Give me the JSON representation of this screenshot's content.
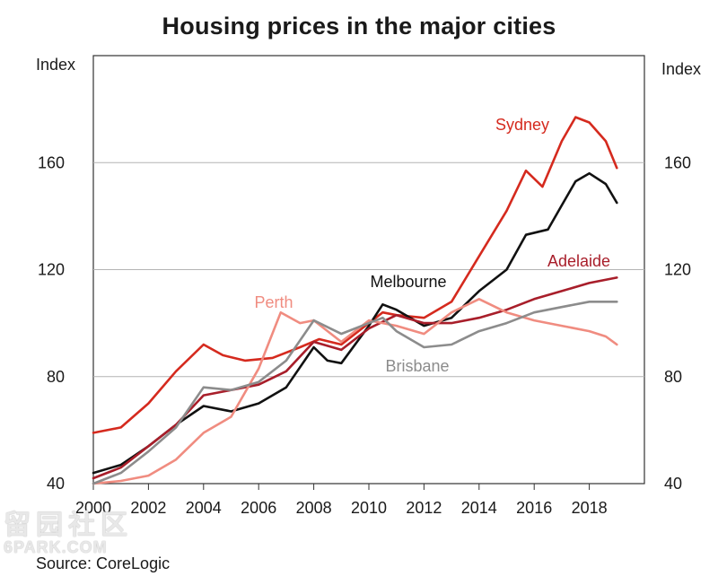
{
  "title": "Housing prices in the major cities",
  "y_unit_left": "Index",
  "y_unit_right": "Index",
  "source": "Source: CoreLogic",
  "watermark": {
    "chars": "留园社区",
    "site": "6PARK.COM"
  },
  "colors": {
    "Sydney": "#d52a1e",
    "Melbourne": "#111111",
    "Adelaide": "#a81e2a",
    "Perth": "#f08c80",
    "Brisbane": "#8c8c8c",
    "grid": "#b4b4b4",
    "axis": "#333333"
  },
  "chart_data": {
    "type": "line",
    "title": "Housing prices in the major cities",
    "ylabel": "Index",
    "xlim": [
      2000,
      2020
    ],
    "ylim": [
      40,
      200
    ],
    "y_ticks": [
      40,
      80,
      120,
      160
    ],
    "x_ticks": [
      2000,
      2002,
      2004,
      2006,
      2008,
      2010,
      2012,
      2014,
      2016,
      2018
    ],
    "grid": "horizontal",
    "series": [
      {
        "name": "Sydney",
        "points": [
          [
            2000,
            59
          ],
          [
            2001,
            61
          ],
          [
            2002,
            70
          ],
          [
            2003,
            82
          ],
          [
            2004,
            92
          ],
          [
            2004.7,
            88
          ],
          [
            2005.5,
            86
          ],
          [
            2006.5,
            87
          ],
          [
            2007.5,
            91
          ],
          [
            2008.2,
            94
          ],
          [
            2009,
            92
          ],
          [
            2010,
            100
          ],
          [
            2010.5,
            104
          ],
          [
            2011,
            103
          ],
          [
            2012,
            102
          ],
          [
            2013,
            108
          ],
          [
            2014,
            125
          ],
          [
            2015,
            142
          ],
          [
            2015.7,
            157
          ],
          [
            2016.3,
            151
          ],
          [
            2017,
            168
          ],
          [
            2017.5,
            177
          ],
          [
            2018,
            175
          ],
          [
            2018.6,
            168
          ],
          [
            2019,
            158
          ]
        ]
      },
      {
        "name": "Melbourne",
        "points": [
          [
            2000,
            44
          ],
          [
            2001,
            47
          ],
          [
            2002,
            54
          ],
          [
            2003,
            62
          ],
          [
            2004,
            69
          ],
          [
            2005,
            67
          ],
          [
            2006,
            70
          ],
          [
            2007,
            76
          ],
          [
            2008,
            91
          ],
          [
            2008.5,
            86
          ],
          [
            2009,
            85
          ],
          [
            2010,
            99
          ],
          [
            2010.5,
            107
          ],
          [
            2011,
            105
          ],
          [
            2012,
            99
          ],
          [
            2013,
            102
          ],
          [
            2014,
            112
          ],
          [
            2015,
            120
          ],
          [
            2015.7,
            133
          ],
          [
            2016.5,
            135
          ],
          [
            2017,
            144
          ],
          [
            2017.5,
            153
          ],
          [
            2018,
            156
          ],
          [
            2018.6,
            152
          ],
          [
            2019,
            145
          ]
        ]
      },
      {
        "name": "Adelaide",
        "points": [
          [
            2000,
            42
          ],
          [
            2001,
            46
          ],
          [
            2002,
            54
          ],
          [
            2003,
            62
          ],
          [
            2004,
            73
          ],
          [
            2005,
            75
          ],
          [
            2006,
            77
          ],
          [
            2007,
            82
          ],
          [
            2008,
            93
          ],
          [
            2009,
            90
          ],
          [
            2010,
            98
          ],
          [
            2011,
            103
          ],
          [
            2012,
            100
          ],
          [
            2013,
            100
          ],
          [
            2014,
            102
          ],
          [
            2015,
            105
          ],
          [
            2016,
            109
          ],
          [
            2017,
            112
          ],
          [
            2018,
            115
          ],
          [
            2019,
            117
          ]
        ]
      },
      {
        "name": "Perth",
        "points": [
          [
            2000,
            40
          ],
          [
            2001,
            41
          ],
          [
            2002,
            43
          ],
          [
            2003,
            49
          ],
          [
            2004,
            59
          ],
          [
            2005,
            65
          ],
          [
            2006,
            83
          ],
          [
            2006.8,
            104
          ],
          [
            2007.5,
            100
          ],
          [
            2008,
            101
          ],
          [
            2009,
            93
          ],
          [
            2010,
            101
          ],
          [
            2011,
            99
          ],
          [
            2012,
            96
          ],
          [
            2013,
            104
          ],
          [
            2014,
            109
          ],
          [
            2015,
            104
          ],
          [
            2016,
            101
          ],
          [
            2017,
            99
          ],
          [
            2018,
            97
          ],
          [
            2018.6,
            95
          ],
          [
            2019,
            92
          ]
        ]
      },
      {
        "name": "Brisbane",
        "points": [
          [
            2000,
            40
          ],
          [
            2001,
            44
          ],
          [
            2002,
            52
          ],
          [
            2003,
            61
          ],
          [
            2004,
            76
          ],
          [
            2005,
            75
          ],
          [
            2006,
            78
          ],
          [
            2007,
            86
          ],
          [
            2008,
            101
          ],
          [
            2009,
            96
          ],
          [
            2010,
            100
          ],
          [
            2010.5,
            102
          ],
          [
            2011,
            97
          ],
          [
            2012,
            91
          ],
          [
            2013,
            92
          ],
          [
            2014,
            97
          ],
          [
            2015,
            100
          ],
          [
            2016,
            104
          ],
          [
            2017,
            106
          ],
          [
            2018,
            108
          ],
          [
            2019,
            108
          ]
        ]
      }
    ],
    "annotations": [
      {
        "text": "Sydney",
        "series": "Sydney"
      },
      {
        "text": "Melbourne",
        "series": "Melbourne"
      },
      {
        "text": "Adelaide",
        "series": "Adelaide"
      },
      {
        "text": "Perth",
        "series": "Perth"
      },
      {
        "text": "Brisbane",
        "series": "Brisbane"
      }
    ]
  }
}
